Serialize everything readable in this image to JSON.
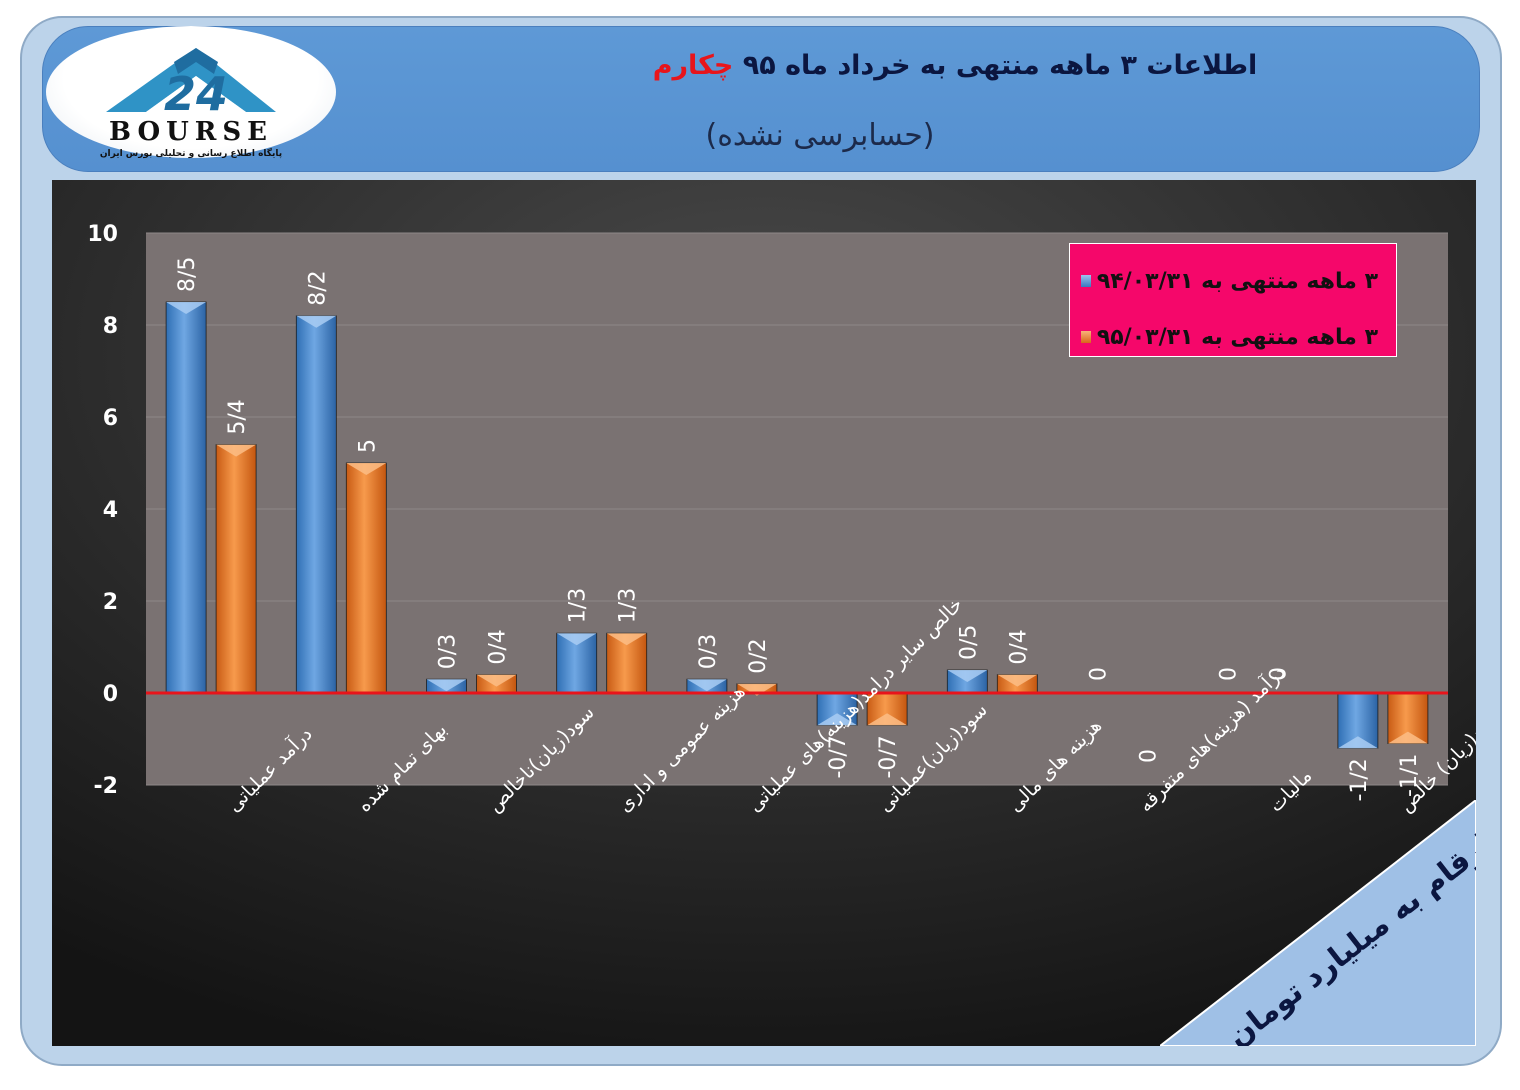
{
  "title_main": "اطلاعات ۳ ماهه منتهی به خرداد ماه ۹۵",
  "title_company": "چکارم",
  "subtitle": "(حسابرسی نشده)",
  "logo": {
    "brand": "BOURSE",
    "tagline": "پایگاه اطلاع رسانی و تحلیلی بورس ایران",
    "icon": "24-bourse-logo"
  },
  "units_note": "ارقام به میلیارد تومان",
  "colors": {
    "series1": "#4e8fd6",
    "series2": "#f0822f",
    "zero_line": "#e8141b",
    "legend_bg": "#f5076a",
    "plot_bg": "#7a7272"
  },
  "chart_data": {
    "type": "bar",
    "categories": [
      "درآمد عملیاتی",
      "بهای تمام شده",
      "سود(زیان)ناخالص",
      "هزینه عمومی و اداری",
      "خالص سایر درامد(هزینه)های عملیاتی",
      "سود(زیان)عملیاتی",
      "هزینه های مالی",
      "درآمد (هزینه)های متفرقه",
      "مالیات",
      "سود(زیان) خالص"
    ],
    "series": [
      {
        "name": "۳ ماهه منتهی به ۹۴/۰۳/۳۱",
        "values": [
          8.5,
          8.2,
          0.3,
          1.3,
          0.3,
          -0.7,
          0.5,
          0,
          0,
          -1.2
        ],
        "labels": [
          "8/5",
          "8/2",
          "0/3",
          "1/3",
          "0/3",
          "-0/7",
          "0/5",
          "0",
          "0",
          "-1/2"
        ]
      },
      {
        "name": "۳ ماهه منتهی به ۹۵/۰۳/۳۱",
        "values": [
          5.4,
          5,
          0.4,
          1.3,
          0.2,
          -0.7,
          0.4,
          0,
          0,
          -1.1
        ],
        "labels": [
          "5/4",
          "5",
          "0/4",
          "1/3",
          "0/2",
          "-0/7",
          "0/4",
          "0",
          "0",
          "-1/1"
        ]
      }
    ],
    "yticks": [
      "10",
      "8",
      "6",
      "4",
      "2",
      "0",
      "-2"
    ],
    "ylim": [
      -2,
      10
    ],
    "grid": true,
    "legend": "top-right"
  }
}
